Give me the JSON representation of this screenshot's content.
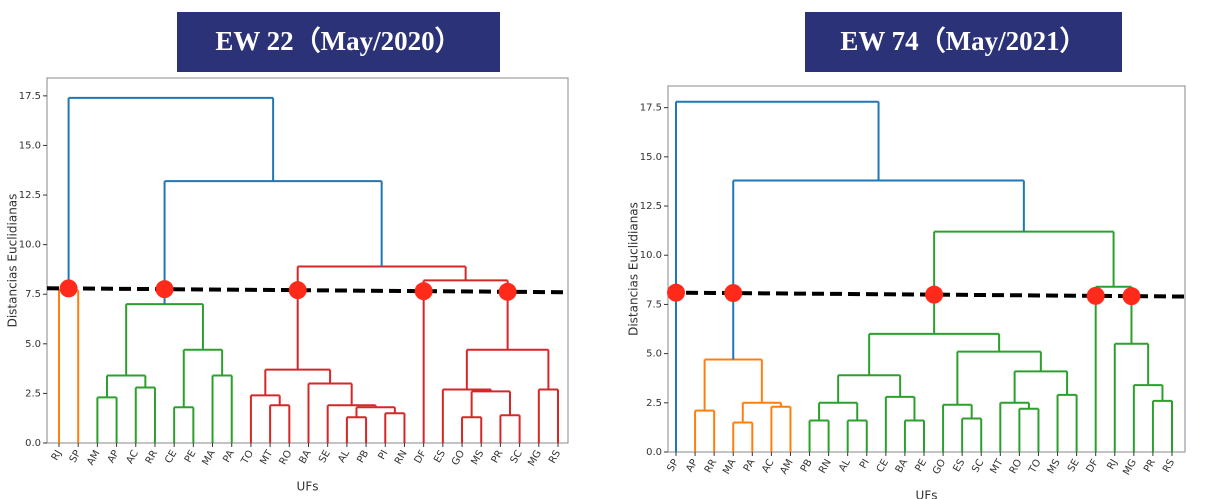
{
  "chart_data": [
    {
      "type": "dendrogram",
      "title": "EW 22（May/2020）",
      "y_label": "Distancias Euclidianas",
      "x_label": "UFs",
      "ylim": [
        0,
        18.4
      ],
      "yticks": [
        {
          "value": 0,
          "label": "0.0"
        },
        2.5,
        {
          "value": 5,
          "label": "5.0"
        },
        7.5,
        {
          "value": 10,
          "label": "10.0"
        },
        12.5,
        {
          "value": 15,
          "label": "15.0"
        },
        17.5
      ],
      "cut_line": [
        7.8,
        7.6
      ],
      "cut_color": "#000000",
      "marker_color": "#ff2a1a",
      "tree": {
        "height": 17.4,
        "color": "#1f77b4",
        "children": [
          {
            "height": 7.7,
            "color": "#ff7f0e",
            "children": [
              "RJ",
              "SP"
            ]
          },
          {
            "height": 13.2,
            "color": "#1f77b4",
            "children": [
              {
                "height": 7.0,
                "color": "#2ca02c",
                "children": [
                  {
                    "height": 3.4,
                    "color": "#2ca02c",
                    "children": [
                      {
                        "height": 2.3,
                        "color": "#2ca02c",
                        "children": [
                          "AM",
                          "AP"
                        ]
                      },
                      {
                        "height": 2.8,
                        "color": "#2ca02c",
                        "children": [
                          "AC",
                          "RR"
                        ]
                      }
                    ]
                  },
                  {
                    "height": 4.7,
                    "color": "#2ca02c",
                    "children": [
                      {
                        "height": 1.8,
                        "color": "#2ca02c",
                        "children": [
                          "CE",
                          "PE"
                        ]
                      },
                      {
                        "height": 3.4,
                        "color": "#2ca02c",
                        "children": [
                          "MA",
                          "PA"
                        ]
                      }
                    ]
                  }
                ]
              },
              {
                "height": 8.9,
                "color": "#d62728",
                "children": [
                  {
                    "height": 3.7,
                    "color": "#d62728",
                    "children": [
                      {
                        "height": 2.4,
                        "color": "#d62728",
                        "children": [
                          "TO",
                          {
                            "height": 1.9,
                            "color": "#d62728",
                            "children": [
                              "MT",
                              "RO"
                            ]
                          }
                        ]
                      },
                      {
                        "height": 3.0,
                        "color": "#d62728",
                        "children": [
                          "BA",
                          {
                            "height": 1.9,
                            "color": "#d62728",
                            "children": [
                              "SE",
                              {
                                "height": 1.8,
                                "color": "#d62728",
                                "children": [
                                  {
                                    "height": 1.3,
                                    "color": "#d62728",
                                    "children": [
                                      "AL",
                                      "PB"
                                    ]
                                  },
                                  {
                                    "height": 1.5,
                                    "color": "#d62728",
                                    "children": [
                                      "PI",
                                      "RN"
                                    ]
                                  }
                                ]
                              }
                            ]
                          }
                        ]
                      }
                    ]
                  },
                  {
                    "height": 8.2,
                    "color": "#d62728",
                    "children": [
                      "DF",
                      {
                        "height": 4.7,
                        "color": "#d62728",
                        "children": [
                          {
                            "height": 2.7,
                            "color": "#d62728",
                            "children": [
                              "ES",
                              {
                                "height": 2.6,
                                "color": "#d62728",
                                "children": [
                                  {
                                    "height": 1.3,
                                    "color": "#d62728",
                                    "children": [
                                      "GO",
                                      "MS"
                                    ]
                                  },
                                  {
                                    "height": 1.4,
                                    "color": "#d62728",
                                    "children": [
                                      "PR",
                                      "SC"
                                    ]
                                  }
                                ]
                              }
                            ]
                          },
                          {
                            "height": 2.7,
                            "color": "#d62728",
                            "children": [
                              "MG",
                              "RS"
                            ]
                          }
                        ]
                      }
                    ]
                  }
                ]
              }
            ]
          }
        ]
      }
    },
    {
      "type": "dendrogram",
      "title": "EW 74（May/2021）",
      "y_label": "Distancias Euclidianas",
      "x_label": "UFs",
      "ylim": [
        0,
        18.6
      ],
      "yticks": [
        {
          "value": 0,
          "label": "0.0"
        },
        2.5,
        {
          "value": 5,
          "label": "5.0"
        },
        7.5,
        {
          "value": 10,
          "label": "10.0"
        },
        12.5,
        {
          "value": 15,
          "label": "15.0"
        },
        17.5
      ],
      "cut_line": [
        8.1,
        7.9
      ],
      "cut_color": "#000000",
      "marker_color": "#ff2a1a",
      "tree": {
        "height": 17.8,
        "color": "#1f77b4",
        "children": [
          "SP",
          {
            "height": 13.8,
            "color": "#1f77b4",
            "children": [
              {
                "height": 4.7,
                "color": "#ff7f0e",
                "children": [
                  {
                    "height": 2.1,
                    "color": "#ff7f0e",
                    "children": [
                      "AP",
                      "RR"
                    ]
                  },
                  {
                    "height": 2.5,
                    "color": "#ff7f0e",
                    "children": [
                      {
                        "height": 1.5,
                        "color": "#ff7f0e",
                        "children": [
                          "MA",
                          "PA"
                        ]
                      },
                      {
                        "height": 2.3,
                        "color": "#ff7f0e",
                        "children": [
                          "AC",
                          "AM"
                        ]
                      }
                    ]
                  }
                ]
              },
              {
                "height": 11.2,
                "color": "#2ca02c",
                "children": [
                  {
                    "height": 6.0,
                    "color": "#2ca02c",
                    "children": [
                      {
                        "height": 3.9,
                        "color": "#2ca02c",
                        "children": [
                          {
                            "height": 2.5,
                            "color": "#2ca02c",
                            "children": [
                              {
                                "height": 1.6,
                                "color": "#2ca02c",
                                "children": [
                                  "PB",
                                  "RN"
                                ]
                              },
                              {
                                "height": 1.6,
                                "color": "#2ca02c",
                                "children": [
                                  "AL",
                                  "PI"
                                ]
                              }
                            ]
                          },
                          {
                            "height": 2.8,
                            "color": "#2ca02c",
                            "children": [
                              "CE",
                              {
                                "height": 1.6,
                                "color": "#2ca02c",
                                "children": [
                                  "BA",
                                  "PE"
                                ]
                              }
                            ]
                          }
                        ]
                      },
                      {
                        "height": 5.1,
                        "color": "#2ca02c",
                        "children": [
                          {
                            "height": 2.4,
                            "color": "#2ca02c",
                            "children": [
                              "GO",
                              {
                                "height": 1.7,
                                "color": "#2ca02c",
                                "children": [
                                  "ES",
                                  "SC"
                                ]
                              }
                            ]
                          },
                          {
                            "height": 4.1,
                            "color": "#2ca02c",
                            "children": [
                              {
                                "height": 2.5,
                                "color": "#2ca02c",
                                "children": [
                                  "MT",
                                  {
                                    "height": 2.2,
                                    "color": "#2ca02c",
                                    "children": [
                                      "RO",
                                      "TO"
                                    ]
                                  }
                                ]
                              },
                              {
                                "height": 2.9,
                                "color": "#2ca02c",
                                "children": [
                                  "MS",
                                  "SE"
                                ]
                              }
                            ]
                          }
                        ]
                      }
                    ]
                  },
                  {
                    "height": 8.4,
                    "color": "#2ca02c",
                    "children": [
                      "DF",
                      {
                        "height": 5.5,
                        "color": "#2ca02c",
                        "children": [
                          "RJ",
                          {
                            "height": 3.4,
                            "color": "#2ca02c",
                            "children": [
                              "MG",
                              {
                                "height": 2.6,
                                "color": "#2ca02c",
                                "children": [
                                  "PR",
                                  "RS"
                                ]
                              }
                            ]
                          }
                        ]
                      }
                    ]
                  }
                ]
              }
            ]
          }
        ]
      }
    }
  ]
}
